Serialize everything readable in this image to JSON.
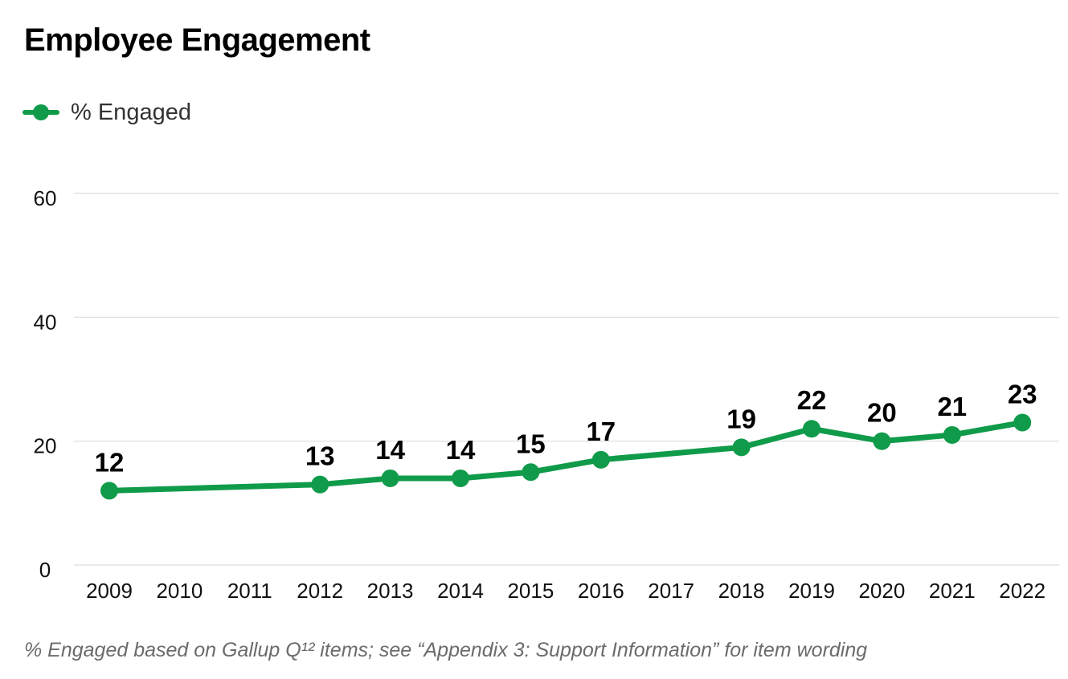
{
  "title": "Employee Engagement",
  "legend": {
    "label": "% Engaged"
  },
  "footnote": "% Engaged based on Gallup Q¹² items; see “Appendix 3: Support Information” for item wording",
  "colors": {
    "series": "#109b4b",
    "grid": "#dddddd",
    "text": "#111111"
  },
  "chart_data": {
    "type": "line",
    "title": "Employee Engagement",
    "categories": [
      "2009",
      "2010",
      "2011",
      "2012",
      "2013",
      "2014",
      "2015",
      "2016",
      "2017",
      "2018",
      "2019",
      "2020",
      "2021",
      "2022"
    ],
    "series": [
      {
        "name": "% Engaged",
        "values": [
          12,
          null,
          null,
          13,
          14,
          14,
          15,
          17,
          null,
          19,
          22,
          20,
          21,
          23
        ]
      }
    ],
    "ylim": [
      0,
      60
    ],
    "yticks": [
      0,
      20,
      40,
      60
    ],
    "grid": true,
    "legend": "top-left",
    "xlabel": "",
    "ylabel": ""
  }
}
